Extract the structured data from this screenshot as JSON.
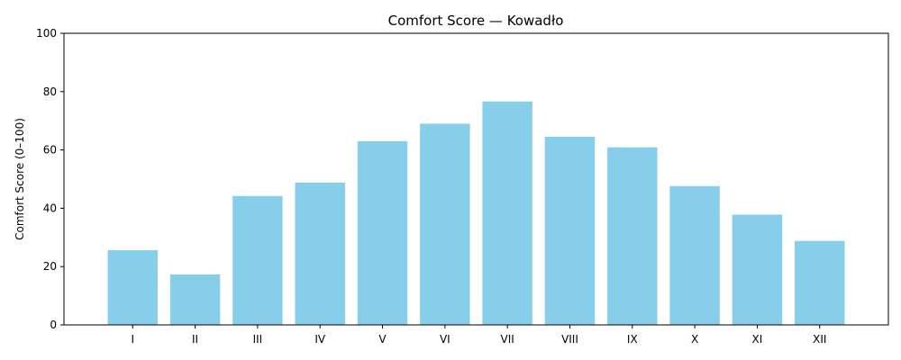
{
  "chart_data": {
    "type": "bar",
    "title": "Comfort Score — Kowadło",
    "xlabel": "",
    "ylabel": "Comfort Score (0–100)",
    "categories": [
      "I",
      "II",
      "III",
      "IV",
      "V",
      "VI",
      "VII",
      "VIII",
      "IX",
      "X",
      "XI",
      "XII"
    ],
    "values": [
      25.6,
      17.3,
      44.2,
      48.8,
      63.0,
      69.0,
      76.6,
      64.5,
      60.9,
      47.6,
      37.8,
      28.8
    ],
    "ylim": [
      0,
      100
    ],
    "yticks": [
      "0",
      "20",
      "40",
      "60",
      "80",
      "100"
    ],
    "bar_color": "#87ceeb",
    "grid": false,
    "legend": "none"
  }
}
